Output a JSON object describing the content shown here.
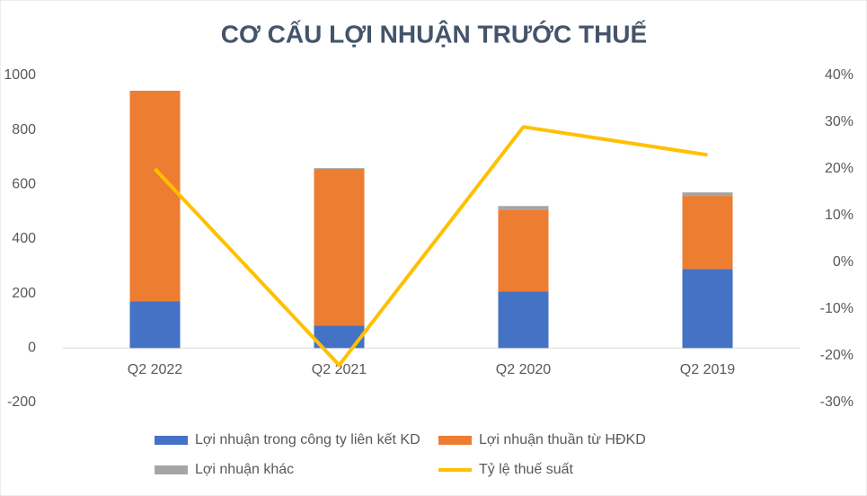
{
  "chart_data": {
    "type": "bar",
    "title": "CƠ CẤU LỢI NHUẬN TRƯỚC THUẾ",
    "categories": [
      "Q2 2022",
      "Q2 2021",
      "Q2 2020",
      "Q2 2019"
    ],
    "stacked": true,
    "legend": "bottom",
    "ylim": [
      -200,
      1000
    ],
    "yticks": [
      -200,
      0,
      200,
      400,
      600,
      800,
      1000
    ],
    "y2lim": [
      -30,
      40
    ],
    "y2ticks": [
      {
        "value": -30,
        "label": "-30%"
      },
      {
        "value": -20,
        "label": "-20%"
      },
      {
        "value": -10,
        "label": "-10%"
      },
      {
        "value": 0,
        "label": "0%"
      },
      {
        "value": 10,
        "label": "10%"
      },
      {
        "value": 20,
        "label": "20%"
      },
      {
        "value": 30,
        "label": "30%"
      },
      {
        "value": 40,
        "label": "40%"
      }
    ],
    "series": [
      {
        "name": "Lợi nhuận trong công ty liên kết KD",
        "type": "bar",
        "color": "#4472c4",
        "values": [
          172,
          82,
          208,
          290
        ]
      },
      {
        "name": "Lợi nhuận thuần từ HĐKD",
        "type": "bar",
        "color": "#ed7d31",
        "values": [
          772,
          575,
          300,
          268
        ]
      },
      {
        "name": "Lợi nhuận khác",
        "type": "bar",
        "color": "#a5a5a5",
        "values": [
          0,
          3,
          13,
          13
        ]
      },
      {
        "name": "Tỷ lệ thuế suất",
        "type": "line",
        "axis": "y2",
        "color": "#ffc000",
        "values": [
          20,
          -22,
          29,
          23
        ]
      }
    ]
  }
}
